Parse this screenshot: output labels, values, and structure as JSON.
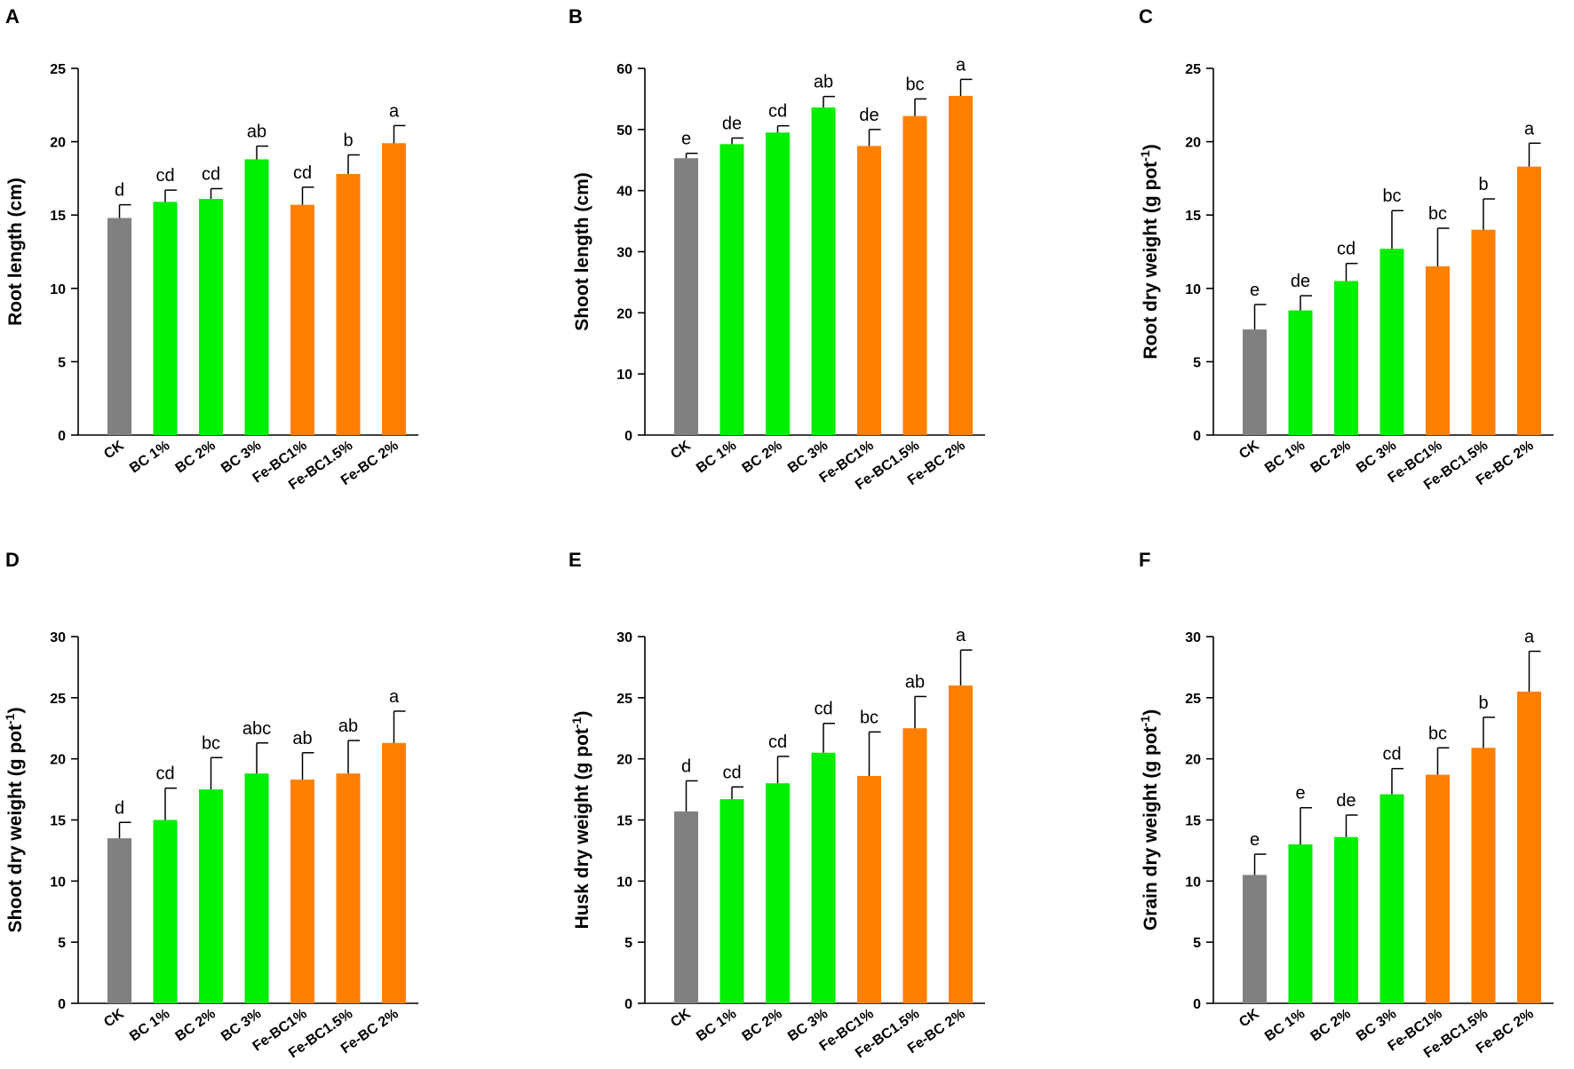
{
  "colors": {
    "control": "#808080",
    "bc": "#00ee00",
    "fe": "#ff7f00"
  },
  "chart_data": [
    {
      "type": "bar",
      "letter": "A",
      "ylabel": "Root length (cm)",
      "ylabel_sup": "",
      "ylabel_tail": "",
      "categories": [
        "CK",
        "BC 1%",
        "BC 2%",
        "BC 3%",
        "Fe-BC1%",
        "Fe-BC1.5%",
        "Fe-BC 2%"
      ],
      "groups": [
        "control",
        "bc",
        "bc",
        "bc",
        "fe",
        "fe",
        "fe"
      ],
      "values": [
        14.8,
        15.9,
        16.1,
        18.8,
        15.7,
        17.8,
        19.9
      ],
      "errors": [
        0.9,
        0.8,
        0.7,
        0.9,
        1.2,
        1.3,
        1.2
      ],
      "letters": [
        "d",
        "cd",
        "cd",
        "ab",
        "cd",
        "b",
        "a"
      ],
      "ylim": [
        0,
        25
      ],
      "ticks": [
        0,
        5,
        10,
        15,
        20,
        25
      ]
    },
    {
      "type": "bar",
      "letter": "B",
      "ylabel": "Shoot length (cm)",
      "ylabel_sup": "",
      "ylabel_tail": "",
      "categories": [
        "CK",
        "BC 1%",
        "BC 2%",
        "BC 3%",
        "Fe-BC1%",
        "Fe-BC1.5%",
        "Fe-BC 2%"
      ],
      "groups": [
        "control",
        "bc",
        "bc",
        "bc",
        "fe",
        "fe",
        "fe"
      ],
      "values": [
        45.3,
        47.6,
        49.5,
        53.6,
        47.3,
        52.2,
        55.5
      ],
      "errors": [
        0.8,
        1.0,
        1.1,
        1.8,
        2.7,
        2.8,
        2.7
      ],
      "letters": [
        "e",
        "de",
        "cd",
        "ab",
        "de",
        "bc",
        "a"
      ],
      "ylim": [
        0,
        60
      ],
      "ticks": [
        0,
        10,
        20,
        30,
        40,
        50,
        60
      ]
    },
    {
      "type": "bar",
      "letter": "C",
      "ylabel": "Root dry weight (g pot",
      "ylabel_sup": "-1",
      "ylabel_tail": ")",
      "categories": [
        "CK",
        "BC 1%",
        "BC 2%",
        "BC 3%",
        "Fe-BC1%",
        "Fe-BC1.5%",
        "Fe-BC 2%"
      ],
      "groups": [
        "control",
        "bc",
        "bc",
        "bc",
        "fe",
        "fe",
        "fe"
      ],
      "values": [
        7.2,
        8.5,
        10.5,
        12.7,
        11.5,
        14.0,
        18.3
      ],
      "errors": [
        1.7,
        1.0,
        1.2,
        2.6,
        2.6,
        2.1,
        1.6
      ],
      "letters": [
        "e",
        "de",
        "cd",
        "bc",
        "bc",
        "b",
        "a"
      ],
      "ylim": [
        0,
        25
      ],
      "ticks": [
        0,
        5,
        10,
        15,
        20,
        25
      ]
    },
    {
      "type": "bar",
      "letter": "D",
      "ylabel": "Shoot dry weight (g pot",
      "ylabel_sup": "-1",
      "ylabel_tail": ")",
      "categories": [
        "CK",
        "BC 1%",
        "BC 2%",
        "BC 3%",
        "Fe-BC1%",
        "Fe-BC1.5%",
        "Fe-BC 2%"
      ],
      "groups": [
        "control",
        "bc",
        "bc",
        "bc",
        "fe",
        "fe",
        "fe"
      ],
      "values": [
        13.5,
        15.0,
        17.5,
        18.8,
        18.3,
        18.8,
        21.3
      ],
      "errors": [
        1.3,
        2.6,
        2.6,
        2.5,
        2.2,
        2.7,
        2.6
      ],
      "letters": [
        "d",
        "cd",
        "bc",
        "abc",
        "ab",
        "ab",
        "a"
      ],
      "ylim": [
        0,
        30
      ],
      "ticks": [
        0,
        5,
        10,
        15,
        20,
        25,
        30
      ]
    },
    {
      "type": "bar",
      "letter": "E",
      "ylabel": "Husk dry weight (g pot",
      "ylabel_sup": "-1",
      "ylabel_tail": ")",
      "categories": [
        "CK",
        "BC 1%",
        "BC 2%",
        "BC 3%",
        "Fe-BC1%",
        "Fe-BC1.5%",
        "Fe-BC 2%"
      ],
      "groups": [
        "control",
        "bc",
        "bc",
        "bc",
        "fe",
        "fe",
        "fe"
      ],
      "values": [
        15.7,
        16.7,
        18.0,
        20.5,
        18.6,
        22.5,
        26.0
      ],
      "errors": [
        2.5,
        1.0,
        2.2,
        2.4,
        3.6,
        2.6,
        2.9
      ],
      "letters": [
        "d",
        "cd",
        "cd",
        "cd",
        "bc",
        "ab",
        "a"
      ],
      "ylim": [
        0,
        30
      ],
      "ticks": [
        0,
        5,
        10,
        15,
        20,
        25,
        30
      ]
    },
    {
      "type": "bar",
      "letter": "F",
      "ylabel": "Grain dry weight (g pot",
      "ylabel_sup": "-1",
      "ylabel_tail": ")",
      "categories": [
        "CK",
        "BC 1%",
        "BC 2%",
        "BC 3%",
        "Fe-BC1%",
        "Fe-BC1.5%",
        "Fe-BC 2%"
      ],
      "groups": [
        "control",
        "bc",
        "bc",
        "bc",
        "fe",
        "fe",
        "fe"
      ],
      "values": [
        10.5,
        13.0,
        13.6,
        17.1,
        18.7,
        20.9,
        25.5
      ],
      "errors": [
        1.7,
        3.0,
        1.8,
        2.1,
        2.2,
        2.5,
        3.3
      ],
      "letters": [
        "e",
        "e",
        "de",
        "cd",
        "bc",
        "b",
        "a"
      ],
      "ylim": [
        0,
        30
      ],
      "ticks": [
        0,
        5,
        10,
        15,
        20,
        25,
        30
      ]
    }
  ]
}
